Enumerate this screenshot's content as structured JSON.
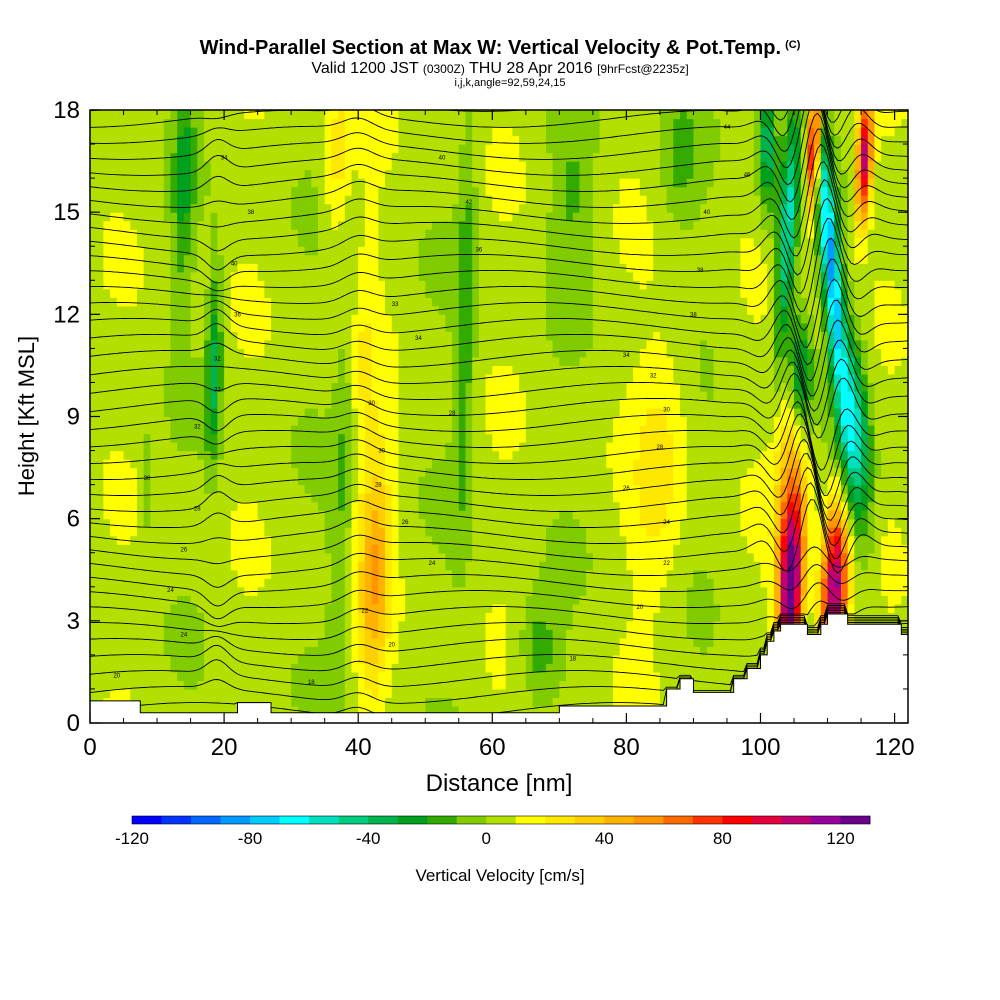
{
  "header": {
    "title": "Wind-Parallel Section at Max W: Vertical Velocity & Pot.Temp.",
    "copyright": "(C)",
    "valid_prefix": "Valid 1200 JST",
    "utc_time": "(0300Z)",
    "valid_date": "THU 28 Apr 2016",
    "forecast_info": "[9hrFcst@2235z]",
    "grid_info": "i,j,k,angle=92,59,24,15"
  },
  "chart_data": {
    "type": "heatmap",
    "title": "Wind-Parallel Section at Max W: Vertical Velocity & Pot.Temp.",
    "xlabel": "Distance [nm]",
    "ylabel": "Height [Kft MSL]",
    "xlim": [
      0,
      122
    ],
    "ylim": [
      0,
      18
    ],
    "x_ticks": [
      0,
      20,
      40,
      60,
      80,
      100,
      120
    ],
    "y_ticks": [
      0,
      3,
      6,
      9,
      12,
      15,
      18
    ],
    "colorbar": {
      "label": "Vertical Velocity [cm/s]",
      "range": [
        -120,
        130
      ],
      "step": 10,
      "tick_values": [
        -120,
        -80,
        -40,
        0,
        40,
        80,
        120
      ],
      "colors": [
        "#0000ff",
        "#0033ff",
        "#0066ff",
        "#0099ff",
        "#00ccff",
        "#00ffff",
        "#00e0bf",
        "#00cc80",
        "#00b34d",
        "#00a01f",
        "#33aa00",
        "#80cc00",
        "#b3e000",
        "#ffff00",
        "#ffe800",
        "#ffd000",
        "#ffb300",
        "#ff9500",
        "#ff6a00",
        "#ff3300",
        "#ff0000",
        "#e6003c",
        "#c00070",
        "#96009a",
        "#6a008a"
      ]
    },
    "contour_field": "Potential Temperature",
    "contour_labels": [
      {
        "x": 4,
        "z": 1.4,
        "text": "20"
      },
      {
        "x": 12,
        "z": 3.9,
        "text": "24"
      },
      {
        "x": 14,
        "z": 2.6,
        "text": "24"
      },
      {
        "x": 14,
        "z": 5.1,
        "text": "26"
      },
      {
        "x": 16,
        "z": 6.3,
        "text": "28"
      },
      {
        "x": 8.5,
        "z": 7.2,
        "text": "30"
      },
      {
        "x": 16,
        "z": 8.7,
        "text": "32"
      },
      {
        "x": 19,
        "z": 9.8,
        "text": "32"
      },
      {
        "x": 19,
        "z": 10.7,
        "text": "32"
      },
      {
        "x": 22,
        "z": 12.0,
        "text": "36"
      },
      {
        "x": 21.5,
        "z": 13.5,
        "text": "40"
      },
      {
        "x": 24,
        "z": 15.0,
        "text": "38"
      },
      {
        "x": 20,
        "z": 16.6,
        "text": "34"
      },
      {
        "x": 33,
        "z": 1.2,
        "text": "18"
      },
      {
        "x": 41,
        "z": 3.3,
        "text": "22"
      },
      {
        "x": 45,
        "z": 2.3,
        "text": "20"
      },
      {
        "x": 43,
        "z": 7.0,
        "text": "28"
      },
      {
        "x": 47,
        "z": 5.9,
        "text": "26"
      },
      {
        "x": 51,
        "z": 4.7,
        "text": "24"
      },
      {
        "x": 43.5,
        "z": 8.0,
        "text": "30"
      },
      {
        "x": 42,
        "z": 9.4,
        "text": "30"
      },
      {
        "x": 54,
        "z": 9.1,
        "text": "28"
      },
      {
        "x": 49,
        "z": 11.3,
        "text": "34"
      },
      {
        "x": 45.5,
        "z": 12.3,
        "text": "33"
      },
      {
        "x": 58,
        "z": 13.9,
        "text": "36"
      },
      {
        "x": 56.5,
        "z": 15.3,
        "text": "42"
      },
      {
        "x": 52.5,
        "z": 16.6,
        "text": "40"
      },
      {
        "x": 72,
        "z": 1.9,
        "text": "18"
      },
      {
        "x": 82,
        "z": 3.4,
        "text": "20"
      },
      {
        "x": 86,
        "z": 4.7,
        "text": "22"
      },
      {
        "x": 86,
        "z": 5.9,
        "text": "24"
      },
      {
        "x": 80,
        "z": 6.9,
        "text": "26"
      },
      {
        "x": 85,
        "z": 8.1,
        "text": "28"
      },
      {
        "x": 86,
        "z": 9.2,
        "text": "30"
      },
      {
        "x": 84,
        "z": 10.2,
        "text": "32"
      },
      {
        "x": 80,
        "z": 10.8,
        "text": "34"
      },
      {
        "x": 90,
        "z": 12.0,
        "text": "38"
      },
      {
        "x": 91,
        "z": 13.3,
        "text": "38"
      },
      {
        "x": 92,
        "z": 15.0,
        "text": "40"
      },
      {
        "x": 98,
        "z": 16.1,
        "text": "46"
      },
      {
        "x": 95,
        "z": 17.5,
        "text": "44"
      }
    ],
    "terrain_profile": [
      [
        0,
        0.65
      ],
      [
        7.5,
        0.65
      ],
      [
        7.5,
        0.3
      ],
      [
        22,
        0.3
      ],
      [
        22,
        0.6
      ],
      [
        27,
        0.6
      ],
      [
        27,
        0.3
      ],
      [
        70,
        0.3
      ],
      [
        70,
        0.5
      ],
      [
        86,
        0.5
      ],
      [
        86,
        1.0
      ],
      [
        88,
        1.0
      ],
      [
        88,
        1.3
      ],
      [
        90,
        1.3
      ],
      [
        90,
        0.9
      ],
      [
        96,
        0.9
      ],
      [
        96,
        1.3
      ],
      [
        98,
        1.3
      ],
      [
        98,
        1.6
      ],
      [
        100,
        1.6
      ],
      [
        100,
        2.0
      ],
      [
        101,
        2.0
      ],
      [
        101,
        2.4
      ],
      [
        102,
        2.4
      ],
      [
        102,
        2.7
      ],
      [
        103,
        2.7
      ],
      [
        103,
        2.9
      ],
      [
        107,
        2.9
      ],
      [
        107,
        2.6
      ],
      [
        109,
        2.6
      ],
      [
        109,
        2.9
      ],
      [
        110,
        2.9
      ],
      [
        110,
        3.2
      ],
      [
        113,
        3.2
      ],
      [
        113,
        2.9
      ],
      [
        121,
        2.9
      ],
      [
        121,
        2.6
      ],
      [
        122,
        2.6
      ]
    ],
    "velocity_features": [
      {
        "x": 104.5,
        "z": 4.0,
        "sx": 1.8,
        "sz": 2.5,
        "tilt": 0.2,
        "w": 125
      },
      {
        "x": 111,
        "z": 3.9,
        "sx": 1.9,
        "sz": 2.4,
        "tilt": 0.2,
        "w": 115
      },
      {
        "x": 108,
        "z": 17.0,
        "sx": 1.0,
        "sz": 1.8,
        "tilt": 0.2,
        "w": 105
      },
      {
        "x": 115.5,
        "z": 16.6,
        "sx": 1.1,
        "sz": 1.8,
        "tilt": 0.2,
        "w": 100
      },
      {
        "x": 105,
        "z": 8.0,
        "sx": 2.5,
        "sz": 3.0,
        "tilt": 0.3,
        "w": 40
      },
      {
        "x": 110.5,
        "z": 13.5,
        "sx": 1.4,
        "sz": 4.0,
        "tilt": -0.4,
        "w": -85
      },
      {
        "x": 104,
        "z": 14.5,
        "sx": 1.4,
        "sz": 3.5,
        "tilt": 0.3,
        "w": -60
      },
      {
        "x": 114,
        "z": 8.5,
        "sx": 2.2,
        "sz": 3.0,
        "tilt": -0.3,
        "w": -60
      },
      {
        "x": 101,
        "z": 17.0,
        "sx": 1.4,
        "sz": 2.0,
        "tilt": 0,
        "w": -45
      },
      {
        "x": 106,
        "z": 10.0,
        "sx": 1.8,
        "sz": 2.0,
        "tilt": 0,
        "w": -55
      },
      {
        "x": 42.5,
        "z": 4.5,
        "sx": 2.2,
        "sz": 3.5,
        "tilt": 0.15,
        "w": 42
      },
      {
        "x": 85,
        "z": 7.5,
        "sx": 4.0,
        "sz": 4.0,
        "tilt": 0.2,
        "w": 18
      },
      {
        "x": 40,
        "z": 10.5,
        "sx": 2.5,
        "sz": 5.0,
        "tilt": 0.15,
        "w": 15
      },
      {
        "x": 37,
        "z": 16.5,
        "sx": 2.0,
        "sz": 2.5,
        "tilt": 0.15,
        "w": 20
      },
      {
        "x": 18.5,
        "z": 10.5,
        "sx": 1.1,
        "sz": 2.8,
        "tilt": 0.1,
        "w": -38
      },
      {
        "x": 14,
        "z": 16.0,
        "sx": 1.6,
        "sz": 3.5,
        "tilt": 0.1,
        "w": -25
      },
      {
        "x": 38,
        "z": 8.5,
        "sx": 1.8,
        "sz": 6.0,
        "tilt": 0.18,
        "w": -20
      },
      {
        "x": 56,
        "z": 11.5,
        "sx": 1.5,
        "sz": 6.0,
        "tilt": 0.1,
        "w": -22
      },
      {
        "x": 67,
        "z": 2.2,
        "sx": 3.0,
        "sz": 1.5,
        "tilt": 0,
        "w": -22
      },
      {
        "x": 72,
        "z": 15.5,
        "sx": 3.5,
        "sz": 2.5,
        "tilt": 0,
        "w": -15
      },
      {
        "x": 88,
        "z": 16.5,
        "sx": 3.0,
        "sz": 2.0,
        "tilt": 0,
        "w": -15
      },
      {
        "x": 8.5,
        "z": 6.8,
        "sx": 1.0,
        "sz": 1.8,
        "tilt": 0,
        "w": -12
      }
    ]
  }
}
